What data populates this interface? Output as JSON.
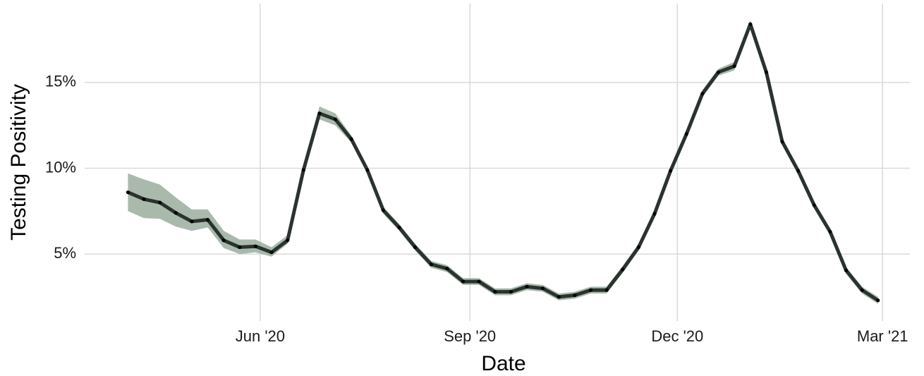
{
  "chart_data": {
    "type": "line",
    "x_label": "Date",
    "y_label": "Testing Positivity",
    "x": [
      "2020-04-04",
      "2020-04-11",
      "2020-04-18",
      "2020-04-25",
      "2020-05-02",
      "2020-05-09",
      "2020-05-16",
      "2020-05-23",
      "2020-05-30",
      "2020-06-06",
      "2020-06-13",
      "2020-06-20",
      "2020-06-27",
      "2020-07-04",
      "2020-07-11",
      "2020-07-18",
      "2020-07-25",
      "2020-08-01",
      "2020-08-08",
      "2020-08-15",
      "2020-08-22",
      "2020-08-29",
      "2020-09-05",
      "2020-09-12",
      "2020-09-19",
      "2020-09-26",
      "2020-10-03",
      "2020-10-10",
      "2020-10-17",
      "2020-10-24",
      "2020-10-31",
      "2020-11-07",
      "2020-11-14",
      "2020-11-21",
      "2020-11-28",
      "2020-12-05",
      "2020-12-12",
      "2020-12-19",
      "2020-12-26",
      "2021-01-02",
      "2021-01-09",
      "2021-01-16",
      "2021-01-23",
      "2021-01-30",
      "2021-02-06",
      "2021-02-13",
      "2021-02-20",
      "2021-02-27"
    ],
    "values": [
      8.6,
      8.2,
      8.0,
      7.4,
      6.9,
      7.0,
      5.8,
      5.4,
      5.45,
      5.1,
      5.8,
      9.9,
      13.2,
      12.85,
      11.7,
      9.9,
      7.55,
      6.55,
      5.4,
      4.4,
      4.15,
      3.4,
      3.4,
      2.8,
      2.8,
      3.1,
      3.0,
      2.5,
      2.6,
      2.9,
      2.9,
      4.1,
      5.4,
      7.35,
      9.85,
      12.0,
      14.35,
      15.6,
      15.95,
      18.4,
      15.6,
      11.55,
      9.85,
      7.85,
      6.3,
      4.05,
      2.9,
      2.3
    ],
    "upper": [
      9.7,
      9.35,
      9.05,
      8.3,
      7.6,
      7.6,
      6.35,
      5.85,
      5.85,
      5.4,
      6.1,
      10.1,
      13.6,
      13.2,
      11.9,
      10.1,
      7.75,
      6.75,
      5.6,
      4.6,
      4.35,
      3.6,
      3.6,
      3.0,
      3.0,
      3.3,
      3.2,
      2.7,
      2.8,
      3.1,
      3.1,
      4.3,
      5.6,
      7.55,
      10.05,
      12.2,
      14.55,
      15.8,
      16.2,
      18.6,
      15.8,
      11.75,
      10.05,
      8.05,
      6.5,
      4.25,
      3.1,
      2.5
    ],
    "lower": [
      7.5,
      7.1,
      7.05,
      6.6,
      6.35,
      6.55,
      5.35,
      5.0,
      5.1,
      4.85,
      5.6,
      9.7,
      12.85,
      12.5,
      11.5,
      9.7,
      7.35,
      6.35,
      5.2,
      4.2,
      3.95,
      3.2,
      3.2,
      2.6,
      2.6,
      2.9,
      2.8,
      2.3,
      2.4,
      2.7,
      2.7,
      3.9,
      5.2,
      7.15,
      9.65,
      11.8,
      14.15,
      15.4,
      15.7,
      18.2,
      15.4,
      11.35,
      9.65,
      7.65,
      6.1,
      3.85,
      2.7,
      2.1
    ],
    "color": "#2b332e",
    "point_color": "#000000",
    "band_color": "#9aae9f",
    "xlim": [
      "2020-03-16",
      "2021-03-13"
    ],
    "xticks": [
      {
        "value": "2020-06-01",
        "label": "Jun '20"
      },
      {
        "value": "2020-09-01",
        "label": "Sep '20"
      },
      {
        "value": "2020-12-01",
        "label": "Dec '20"
      },
      {
        "value": "2021-03-01",
        "label": "Mar '21"
      }
    ],
    "ylim": [
      1.1,
      19.6
    ],
    "yticks": [
      {
        "value": 5,
        "label": "5%"
      },
      {
        "value": 10,
        "label": "10%"
      },
      {
        "value": 15,
        "label": "15%"
      }
    ],
    "grid": true
  }
}
